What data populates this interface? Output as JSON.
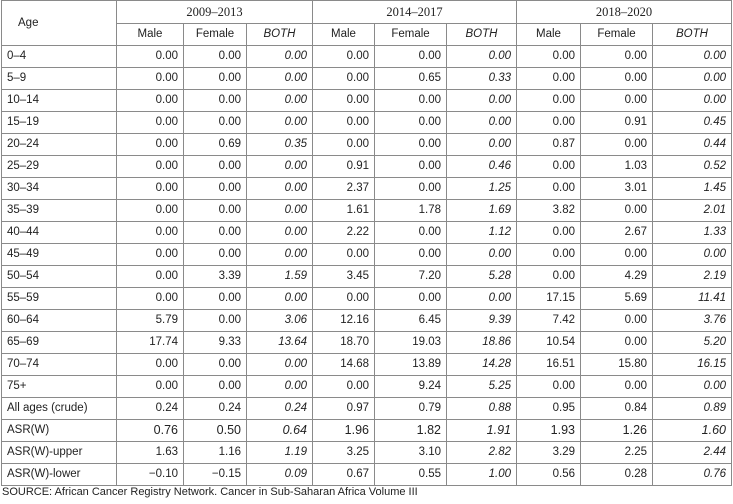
{
  "header": {
    "age_label": "Age",
    "periods": [
      "2009–2013",
      "2014–2017",
      "2018–2020"
    ],
    "sub": [
      "Male",
      "Female",
      "BOTH"
    ]
  },
  "rows": [
    [
      "0–4",
      "0.00",
      "0.00",
      "0.00",
      "0.00",
      "0.00",
      "0.00",
      "0.00",
      "0.00",
      "0.00"
    ],
    [
      "5–9",
      "0.00",
      "0.00",
      "0.00",
      "0.00",
      "0.65",
      "0.33",
      "0.00",
      "0.00",
      "0.00"
    ],
    [
      "10–14",
      "0.00",
      "0.00",
      "0.00",
      "0.00",
      "0.00",
      "0.00",
      "0.00",
      "0.00",
      "0.00"
    ],
    [
      "15–19",
      "0.00",
      "0.00",
      "0.00",
      "0.00",
      "0.00",
      "0.00",
      "0.00",
      "0.91",
      "0.45"
    ],
    [
      "20–24",
      "0.00",
      "0.69",
      "0.35",
      "0.00",
      "0.00",
      "0.00",
      "0.87",
      "0.00",
      "0.44"
    ],
    [
      "25–29",
      "0.00",
      "0.00",
      "0.00",
      "0.91",
      "0.00",
      "0.46",
      "0.00",
      "1.03",
      "0.52"
    ],
    [
      "30–34",
      "0.00",
      "0.00",
      "0.00",
      "2.37",
      "0.00",
      "1.25",
      "0.00",
      "3.01",
      "1.45"
    ],
    [
      "35–39",
      "0.00",
      "0.00",
      "0.00",
      "1.61",
      "1.78",
      "1.69",
      "3.82",
      "0.00",
      "2.01"
    ],
    [
      "40–44",
      "0.00",
      "0.00",
      "0.00",
      "2.22",
      "0.00",
      "1.12",
      "0.00",
      "2.67",
      "1.33"
    ],
    [
      "45–49",
      "0.00",
      "0.00",
      "0.00",
      "0.00",
      "0.00",
      "0.00",
      "0.00",
      "0.00",
      "0.00"
    ],
    [
      "50–54",
      "0.00",
      "3.39",
      "1.59",
      "3.45",
      "7.20",
      "5.28",
      "0.00",
      "4.29",
      "2.19"
    ],
    [
      "55–59",
      "0.00",
      "0.00",
      "0.00",
      "0.00",
      "0.00",
      "0.00",
      "17.15",
      "5.69",
      "11.41"
    ],
    [
      "60–64",
      "5.79",
      "0.00",
      "3.06",
      "12.16",
      "6.45",
      "9.39",
      "7.42",
      "0.00",
      "3.76"
    ],
    [
      "65–69",
      "17.74",
      "9.33",
      "13.64",
      "18.70",
      "19.03",
      "18.86",
      "10.54",
      "0.00",
      "5.20"
    ],
    [
      "70–74",
      "0.00",
      "0.00",
      "0.00",
      "14.68",
      "13.89",
      "14.28",
      "16.51",
      "15.80",
      "16.15"
    ],
    [
      "75+",
      "0.00",
      "0.00",
      "0.00",
      "0.00",
      "9.24",
      "5.25",
      "0.00",
      "0.00",
      "0.00"
    ],
    [
      "All ages (crude)",
      "0.24",
      "0.24",
      "0.24",
      "0.97",
      "0.79",
      "0.88",
      "0.95",
      "0.84",
      "0.89"
    ],
    [
      "ASR(W)",
      "0.76",
      "0.50",
      "0.64",
      "1.96",
      "1.82",
      "1.91",
      "1.93",
      "1.26",
      "1.60"
    ],
    [
      "ASR(W)-upper",
      "1.63",
      "1.16",
      "1.19",
      "3.25",
      "3.10",
      "2.82",
      "3.29",
      "2.25",
      "2.44"
    ],
    [
      "ASR(W)-lower",
      "−0.10",
      "−0.15",
      "0.09",
      "0.67",
      "0.55",
      "1.00",
      "0.56",
      "0.28",
      "0.76"
    ]
  ],
  "source": "SOURCE: African Cancer Registry Network. Cancer in Sub-Saharan Africa Volume III"
}
